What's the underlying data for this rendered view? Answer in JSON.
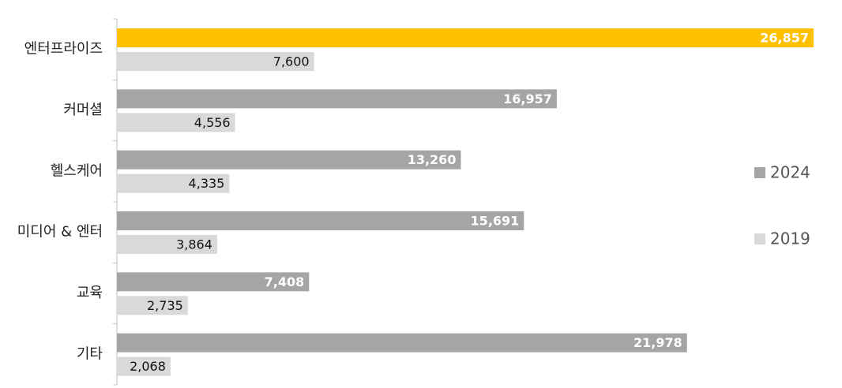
{
  "chart_data": {
    "type": "hbar",
    "categories": [
      "엔터프라이즈",
      "커머셜",
      "헬스케어",
      "미디어 & 엔터",
      "교육",
      "기타"
    ],
    "series": [
      {
        "name": "2024",
        "color": "#a5a5a5",
        "colors": [
          "#ffc000",
          "#a5a5a5",
          "#a5a5a5",
          "#a5a5a5",
          "#a5a5a5",
          "#a5a5a5"
        ],
        "values": [
          26857,
          16957,
          13260,
          15691,
          7408,
          21978
        ],
        "value_labels": [
          "26,857",
          "16,957",
          "13,260",
          "15,691",
          "7,408",
          "21,978"
        ]
      },
      {
        "name": "2019",
        "color": "#d9d9d9",
        "values": [
          7600,
          4556,
          4335,
          3864,
          2735,
          2068
        ],
        "value_labels": [
          "7,600",
          "4,556",
          "4,335",
          "3,864",
          "2,735",
          "2,068"
        ]
      }
    ],
    "legend": "right"
  }
}
